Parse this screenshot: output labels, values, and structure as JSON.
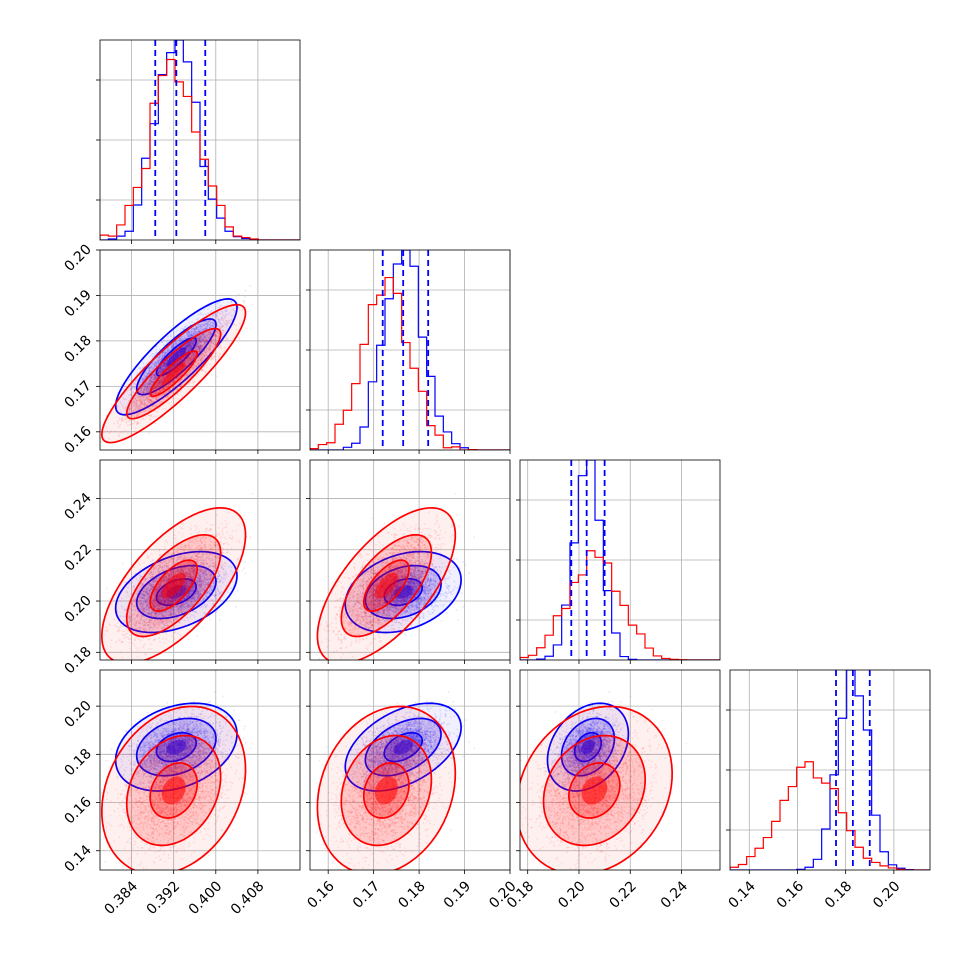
{
  "chart_data": {
    "type": "corner",
    "grid": true,
    "colors": {
      "series_a": "#0000ff",
      "series_b": "#ff0000",
      "grid": "#b0b0b0",
      "axes": "#000000"
    },
    "parameters": [
      {
        "range": [
          0.378,
          0.416
        ],
        "ticks": [
          0.384,
          0.392,
          0.4,
          0.408
        ],
        "tick_labels": [
          "0.384",
          "0.392",
          "0.400",
          "0.408"
        ]
      },
      {
        "range": [
          0.156,
          0.2
        ],
        "ticks": [
          0.16,
          0.17,
          0.18,
          0.19,
          0.2
        ],
        "tick_labels": [
          "0.16",
          "0.17",
          "0.18",
          "0.19",
          "0.20"
        ]
      },
      {
        "range": [
          0.177,
          0.255
        ],
        "ticks": [
          0.18,
          0.2,
          0.22,
          0.24
        ],
        "tick_labels": [
          "0.18",
          "0.20",
          "0.22",
          "0.24"
        ]
      },
      {
        "range": [
          0.132,
          0.215
        ],
        "ticks": [
          0.14,
          0.16,
          0.18,
          0.2
        ],
        "tick_labels": [
          "0.14",
          "0.16",
          "0.18",
          "0.20"
        ]
      }
    ],
    "series": [
      {
        "color": "#0000ff",
        "mean": [
          0.3925,
          0.1765,
          0.2035,
          0.183
        ],
        "std": [
          0.0038,
          0.0042,
          0.0052,
          0.006
        ],
        "corr": [
          [
            1,
            0.85,
            0.4,
            0.3
          ],
          [
            0.85,
            1,
            0.3,
            0.45
          ],
          [
            0.4,
            0.3,
            1,
            0.3
          ],
          [
            0.3,
            0.45,
            0.3,
            1
          ]
        ]
      },
      {
        "color": "#ff0000",
        "mean": [
          0.392,
          0.1728,
          0.206,
          0.165
        ],
        "std": [
          0.0045,
          0.005,
          0.01,
          0.0115
        ],
        "corr": [
          [
            1,
            0.88,
            0.65,
            0.25
          ],
          [
            0.88,
            1,
            0.65,
            0.2
          ],
          [
            0.65,
            0.65,
            1,
            0.2
          ],
          [
            0.25,
            0.2,
            0.2,
            1
          ]
        ]
      }
    ],
    "quantile_lines": {
      "color": "#0000ff",
      "style": "dashed",
      "values": [
        [
          0.3885,
          0.3925,
          0.398
        ],
        [
          0.172,
          0.1765,
          0.182
        ],
        [
          0.197,
          0.203,
          0.21
        ],
        [
          0.176,
          0.183,
          0.19
        ]
      ]
    },
    "contour_levels": [
      0.39,
      0.86,
      0.99
    ]
  }
}
